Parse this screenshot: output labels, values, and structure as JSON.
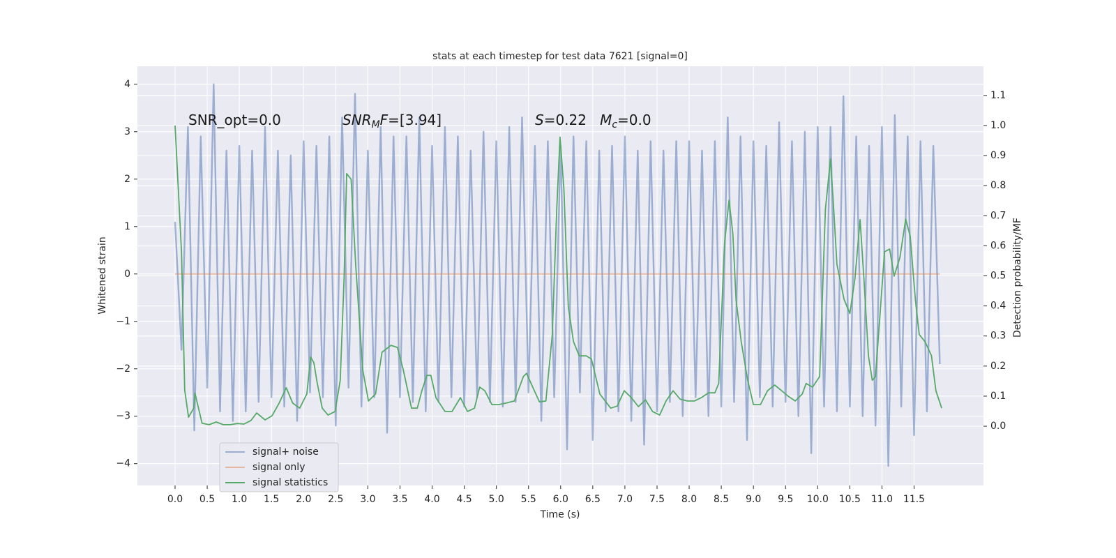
{
  "chart_data": {
    "type": "line",
    "title": "stats at each timestep for test data 7621 [signal=0]",
    "xlabel": "Time (s)",
    "ylabel": "Whitened strain",
    "y2label": "Detection probability/MF",
    "xlim": [
      -0.586,
      12.58
    ],
    "ylim": [
      -4.46,
      4.38
    ],
    "y2lim": [
      -0.197,
      1.197
    ],
    "xticks": [
      {
        "value": 0,
        "label": "0.0"
      },
      0.5,
      {
        "value": 1,
        "label": "1.0"
      },
      1.5,
      {
        "value": 2,
        "label": "2.0"
      },
      2.5,
      {
        "value": 3,
        "label": "3.0"
      },
      3.5,
      {
        "value": 4,
        "label": "4.0"
      },
      4.5,
      {
        "value": 5,
        "label": "5.0"
      },
      5.5,
      {
        "value": 6,
        "label": "6.0"
      },
      6.5,
      {
        "value": 7,
        "label": "7.0"
      },
      7.5,
      {
        "value": 8,
        "label": "8.0"
      },
      8.5,
      {
        "value": 9,
        "label": "9.0"
      },
      9.5,
      {
        "value": 10,
        "label": "10.0"
      },
      10.5,
      {
        "value": 11,
        "label": "11.0"
      },
      11.5
    ],
    "yticks": [
      {
        "value": -4,
        "label": "−4"
      },
      {
        "value": -3,
        "label": "−3"
      },
      {
        "value": -2,
        "label": "−2"
      },
      {
        "value": -1,
        "label": "−1"
      },
      0,
      1,
      2,
      3,
      4
    ],
    "y2ticks": [
      {
        "value": 0,
        "label": "0.0"
      },
      0.1,
      0.2,
      0.3,
      0.4,
      0.5,
      0.6,
      0.7,
      0.8,
      0.9,
      {
        "value": 1,
        "label": "1.0"
      },
      1.1
    ],
    "grid": true,
    "background": "#eaeaf2",
    "legend": "lower left",
    "annotations": [
      [
        {
          "text": "SNR_opt=0.0"
        }
      ],
      [
        {
          "text": "SNR",
          "italic": true
        },
        {
          "text": "M",
          "italic": true,
          "sub": true
        },
        {
          "text": "F",
          "italic": true
        },
        {
          "text": "=[3.94]"
        }
      ],
      [
        {
          "text": "S",
          "italic": true
        },
        {
          "text": "=0.22   "
        },
        {
          "text": "M",
          "italic": true
        },
        {
          "text": "c",
          "italic": true,
          "sub": true
        },
        {
          "text": "=0.0"
        }
      ]
    ],
    "series": [
      {
        "name": "signal+ noise",
        "color": "#4c72b0",
        "alpha": 0.5,
        "x": [
          0.0,
          0.1,
          0.2,
          0.3,
          0.4,
          0.5,
          0.6,
          0.7,
          0.8,
          0.9,
          1.0,
          1.1,
          1.2,
          1.3,
          1.4,
          1.5,
          1.6,
          1.7,
          1.8,
          1.9,
          2.0,
          2.1,
          2.2,
          2.3,
          2.4,
          2.5,
          2.6,
          2.7,
          2.8,
          2.9,
          3.0,
          3.1,
          3.2,
          3.3,
          3.4,
          3.5,
          3.6,
          3.7,
          3.8,
          3.9,
          4.0,
          4.1,
          4.2,
          4.3,
          4.4,
          4.5,
          4.6,
          4.7,
          4.8,
          4.9,
          5.0,
          5.1,
          5.2,
          5.3,
          5.4,
          5.5,
          5.6,
          5.7,
          5.8,
          5.9,
          6.0,
          6.1,
          6.2,
          6.3,
          6.4,
          6.5,
          6.6,
          6.7,
          6.8,
          6.9,
          7.0,
          7.1,
          7.2,
          7.3,
          7.4,
          7.5,
          7.6,
          7.7,
          7.8,
          7.9,
          8.0,
          8.1,
          8.2,
          8.3,
          8.4,
          8.5,
          8.6,
          8.7,
          8.8,
          8.9,
          9.0,
          9.1,
          9.2,
          9.3,
          9.4,
          9.5,
          9.6,
          9.7,
          9.8,
          9.9,
          10.0,
          10.1,
          10.2,
          10.3,
          10.4,
          10.5,
          10.6,
          10.7,
          10.8,
          10.9,
          11.0,
          11.1,
          11.2,
          11.3,
          11.4,
          11.5,
          11.6,
          11.7,
          11.8,
          11.9
        ],
        "values": [
          1.1,
          -1.6,
          3.1,
          -3.3,
          2.9,
          -2.4,
          4.0,
          -2.9,
          2.6,
          -3.1,
          2.7,
          -2.9,
          2.6,
          -2.7,
          3.1,
          -2.6,
          2.6,
          -2.8,
          2.5,
          -3.1,
          2.8,
          -2.5,
          2.7,
          -2.6,
          2.9,
          -3.2,
          3.3,
          -2.4,
          3.8,
          -2.8,
          2.6,
          -2.6,
          3.1,
          -3.35,
          2.9,
          -2.6,
          2.9,
          -2.7,
          3.3,
          -2.9,
          2.7,
          -2.7,
          3.1,
          -2.6,
          2.9,
          -2.8,
          2.6,
          -2.6,
          3.0,
          -2.7,
          2.8,
          -2.8,
          3.1,
          -2.7,
          3.3,
          -2.5,
          2.7,
          -3.1,
          2.8,
          -2.6,
          2.7,
          -3.7,
          2.9,
          -2.5,
          2.8,
          -3.5,
          2.6,
          -2.9,
          2.7,
          -2.9,
          2.9,
          -3.1,
          2.6,
          -3.6,
          2.8,
          -2.9,
          2.6,
          -2.7,
          2.8,
          -3.0,
          2.8,
          -2.6,
          2.6,
          -3.0,
          2.8,
          -2.8,
          3.3,
          -2.7,
          2.9,
          -3.5,
          2.8,
          -2.6,
          2.7,
          -2.8,
          3.2,
          -2.7,
          2.8,
          -3.0,
          3.0,
          -3.78,
          3.1,
          -2.8,
          3.1,
          -2.9,
          3.75,
          -2.8,
          2.9,
          -3.0,
          2.7,
          -3.2,
          3.1,
          -4.05,
          3.35,
          -2.8,
          2.9,
          -3.4,
          2.8,
          -2.9,
          2.7,
          -1.9
        ]
      },
      {
        "name": "signal only",
        "color": "#dd8452",
        "alpha": 0.5,
        "x": [
          0.0,
          11.9
        ],
        "values": [
          0,
          0
        ]
      },
      {
        "name": "signal statistics",
        "color": "#55a868",
        "alpha": 1,
        "axis": "y2",
        "x": [
          0.0,
          0.1,
          0.15,
          0.21,
          0.29,
          0.31,
          0.42,
          0.53,
          0.64,
          0.75,
          0.86,
          0.97,
          1.07,
          1.18,
          1.27,
          1.4,
          1.51,
          1.62,
          1.73,
          1.83,
          1.94,
          2.05,
          2.11,
          2.16,
          2.21,
          2.29,
          2.38,
          2.49,
          2.57,
          2.63,
          2.67,
          2.74,
          2.81,
          2.92,
          3.01,
          3.12,
          3.22,
          3.36,
          3.46,
          3.55,
          3.68,
          3.77,
          3.84,
          3.92,
          3.98,
          4.06,
          4.2,
          4.31,
          4.44,
          4.55,
          4.66,
          4.74,
          4.82,
          4.93,
          5.04,
          5.15,
          5.28,
          5.42,
          5.47,
          5.58,
          5.67,
          5.77,
          5.87,
          5.94,
          5.99,
          6.05,
          6.12,
          6.2,
          6.29,
          6.4,
          6.48,
          6.61,
          6.78,
          6.88,
          6.99,
          7.1,
          7.21,
          7.32,
          7.43,
          7.54,
          7.64,
          7.75,
          7.86,
          7.97,
          8.08,
          8.19,
          8.3,
          8.4,
          8.46,
          8.55,
          8.62,
          8.68,
          8.73,
          8.81,
          8.91,
          9.0,
          9.11,
          9.22,
          9.33,
          9.44,
          9.54,
          9.65,
          9.76,
          9.82,
          9.92,
          10.03,
          10.12,
          10.2,
          10.25,
          10.3,
          10.41,
          10.5,
          10.58,
          10.66,
          10.72,
          10.79,
          10.85,
          10.9,
          10.98,
          11.04,
          11.12,
          11.19,
          11.28,
          11.37,
          11.44,
          11.52,
          11.58,
          11.67,
          11.77,
          11.84,
          11.93
        ],
        "values": [
          1.0,
          0.58,
          0.12,
          0.03,
          0.06,
          0.11,
          0.01,
          0.005,
          0.014,
          0.005,
          0.005,
          0.009,
          0.007,
          0.019,
          0.044,
          0.021,
          0.035,
          0.077,
          0.128,
          0.077,
          0.06,
          0.107,
          0.23,
          0.211,
          0.146,
          0.06,
          0.037,
          0.049,
          0.153,
          0.49,
          0.84,
          0.821,
          0.539,
          0.188,
          0.084,
          0.107,
          0.246,
          0.269,
          0.262,
          0.188,
          0.06,
          0.06,
          0.118,
          0.169,
          0.169,
          0.095,
          0.049,
          0.049,
          0.095,
          0.049,
          0.06,
          0.13,
          0.118,
          0.072,
          0.072,
          0.077,
          0.084,
          0.165,
          0.176,
          0.123,
          0.081,
          0.084,
          0.304,
          0.722,
          0.961,
          0.791,
          0.397,
          0.281,
          0.234,
          0.234,
          0.223,
          0.107,
          0.06,
          0.067,
          0.118,
          0.095,
          0.065,
          0.088,
          0.049,
          0.037,
          0.084,
          0.118,
          0.09,
          0.084,
          0.084,
          0.095,
          0.111,
          0.111,
          0.142,
          0.606,
          0.752,
          0.64,
          0.42,
          0.281,
          0.153,
          0.072,
          0.072,
          0.118,
          0.137,
          0.118,
          0.1,
          0.084,
          0.107,
          0.142,
          0.13,
          0.165,
          0.722,
          0.889,
          0.722,
          0.538,
          0.422,
          0.375,
          0.49,
          0.687,
          0.49,
          0.234,
          0.153,
          0.165,
          0.401,
          0.58,
          0.589,
          0.499,
          0.561,
          0.689,
          0.631,
          0.422,
          0.305,
          0.281,
          0.235,
          0.118,
          0.06
        ]
      }
    ]
  }
}
